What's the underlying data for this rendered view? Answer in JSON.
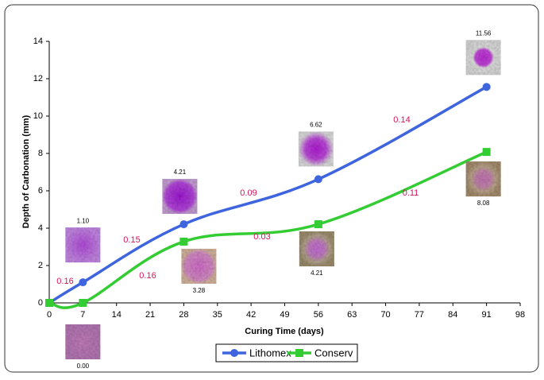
{
  "chart_data": {
    "type": "line",
    "x_label": "Curing Time (days)",
    "y_label": "Depth of Carbonation (mm)",
    "x": [
      0,
      7,
      28,
      56,
      91
    ],
    "series": [
      {
        "name": "Lithomex",
        "color": "#3e64de",
        "marker": "circle",
        "values": [
          0,
          1.1,
          4.21,
          6.62,
          11.56
        ],
        "value_labels": [
          null,
          "1.10",
          "4.21",
          "6.62",
          "11.56"
        ],
        "slope_labels": [
          0.16,
          0.15,
          0.09,
          0.14
        ]
      },
      {
        "name": "Conserv",
        "color": "#33cc33",
        "marker": "square",
        "values": [
          0,
          0,
          3.28,
          4.21,
          8.08
        ],
        "value_labels": [
          null,
          "0.00",
          "3.28",
          "4.21",
          "8.08"
        ],
        "slope_labels": [
          0.16,
          0.03,
          0.11
        ]
      }
    ],
    "xlim": [
      0,
      98
    ],
    "xticks": [
      0,
      7,
      14,
      21,
      28,
      35,
      42,
      49,
      56,
      63,
      70,
      77,
      84,
      91,
      98
    ],
    "ylim": [
      0,
      14
    ],
    "yticks": [
      0,
      2,
      4,
      6,
      8,
      10,
      12,
      14
    ],
    "grid": false,
    "legend": "bottom"
  }
}
